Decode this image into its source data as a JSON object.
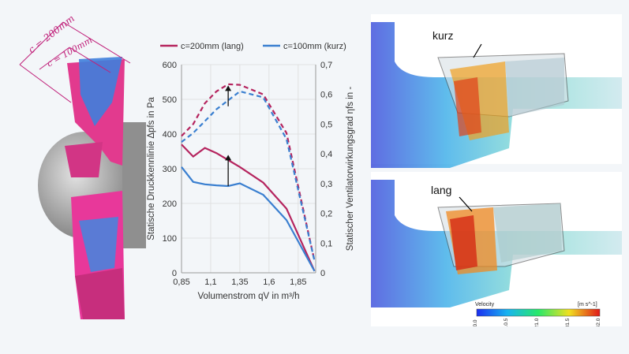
{
  "left_figure": {
    "dim_long": "c = 200mm",
    "dim_short": "c = 100mm"
  },
  "chart_data": {
    "type": "line",
    "legend": [
      {
        "name": "c=200mm (lang)",
        "color": "#b5245e"
      },
      {
        "name": "c=100mm (kurz)",
        "color": "#3a7fd0"
      }
    ],
    "legend_position": "top",
    "xlabel": "Volumenstrom qV in m³/h",
    "ylabel_left": "Statische Druckkennlinie Δpfs in Pa",
    "ylabel_right": "Statischer Ventilatorwirkungsgrad ηfs in -",
    "xlim": [
      0.85,
      2.0
    ],
    "ylim_left": [
      0,
      600
    ],
    "ylim_right": [
      0,
      0.7
    ],
    "x_ticks": [
      "0,85",
      "1,1",
      "1,35",
      "1,6",
      "1,85"
    ],
    "x_tick_values": [
      0.85,
      1.1,
      1.35,
      1.6,
      1.85
    ],
    "y_ticks_left": [
      "0",
      "100",
      "200",
      "300",
      "400",
      "500",
      "600"
    ],
    "y_tick_values_left": [
      0,
      100,
      200,
      300,
      400,
      500,
      600
    ],
    "y_ticks_right": [
      "0",
      "0,1",
      "0,2",
      "0,3",
      "0,4",
      "0,5",
      "0,6",
      "0,7"
    ],
    "y_tick_values_right": [
      0,
      0.1,
      0.2,
      0.3,
      0.4,
      0.5,
      0.6,
      0.7
    ],
    "grid": true,
    "series": [
      {
        "name": "c=200mm (lang)",
        "axis": "left",
        "style": "solid",
        "color": "#b5245e",
        "x": [
          0.85,
          0.95,
          1.05,
          1.15,
          1.25,
          1.35,
          1.55,
          1.75,
          1.99
        ],
        "y": [
          370,
          335,
          360,
          345,
          325,
          305,
          260,
          185,
          5
        ]
      },
      {
        "name": "c=100mm (kurz)",
        "axis": "left",
        "style": "solid",
        "color": "#3a7fd0",
        "x": [
          0.85,
          0.95,
          1.05,
          1.15,
          1.25,
          1.35,
          1.55,
          1.75,
          1.99
        ],
        "y": [
          305,
          262,
          255,
          252,
          250,
          258,
          225,
          152,
          5
        ]
      },
      {
        "name": "c=200mm (lang)",
        "axis": "right",
        "style": "dashed",
        "color": "#b5245e",
        "x": [
          0.85,
          0.95,
          1.05,
          1.15,
          1.25,
          1.35,
          1.55,
          1.75,
          1.99
        ],
        "y": [
          0.46,
          0.5,
          0.57,
          0.61,
          0.634,
          0.632,
          0.6,
          0.47,
          0.04
        ]
      },
      {
        "name": "c=100mm (kurz)",
        "axis": "right",
        "style": "dashed",
        "color": "#3a7fd0",
        "x": [
          0.85,
          0.95,
          1.05,
          1.15,
          1.25,
          1.35,
          1.55,
          1.75,
          1.99
        ],
        "y": [
          0.44,
          0.47,
          0.51,
          0.55,
          0.58,
          0.61,
          0.59,
          0.45,
          0.04
        ]
      }
    ],
    "arrows": [
      {
        "axis": "right",
        "x": 1.25,
        "from": 0.56,
        "to": 0.63
      },
      {
        "axis": "left",
        "x": 1.25,
        "from": 250,
        "to": 340
      }
    ]
  },
  "simulation": {
    "label_top": "kurz",
    "label_bottom": "lang",
    "colorbar_title": "Velocity",
    "colorbar_unit": "[m s^-1]",
    "colorbar_ticks": [
      "0.0",
      "10.5",
      "21.0",
      "31.5",
      "42.0"
    ],
    "colorbar_colors": [
      "#1a2ef0",
      "#18b4f0",
      "#28e86a",
      "#f0e020",
      "#e01818"
    ]
  }
}
